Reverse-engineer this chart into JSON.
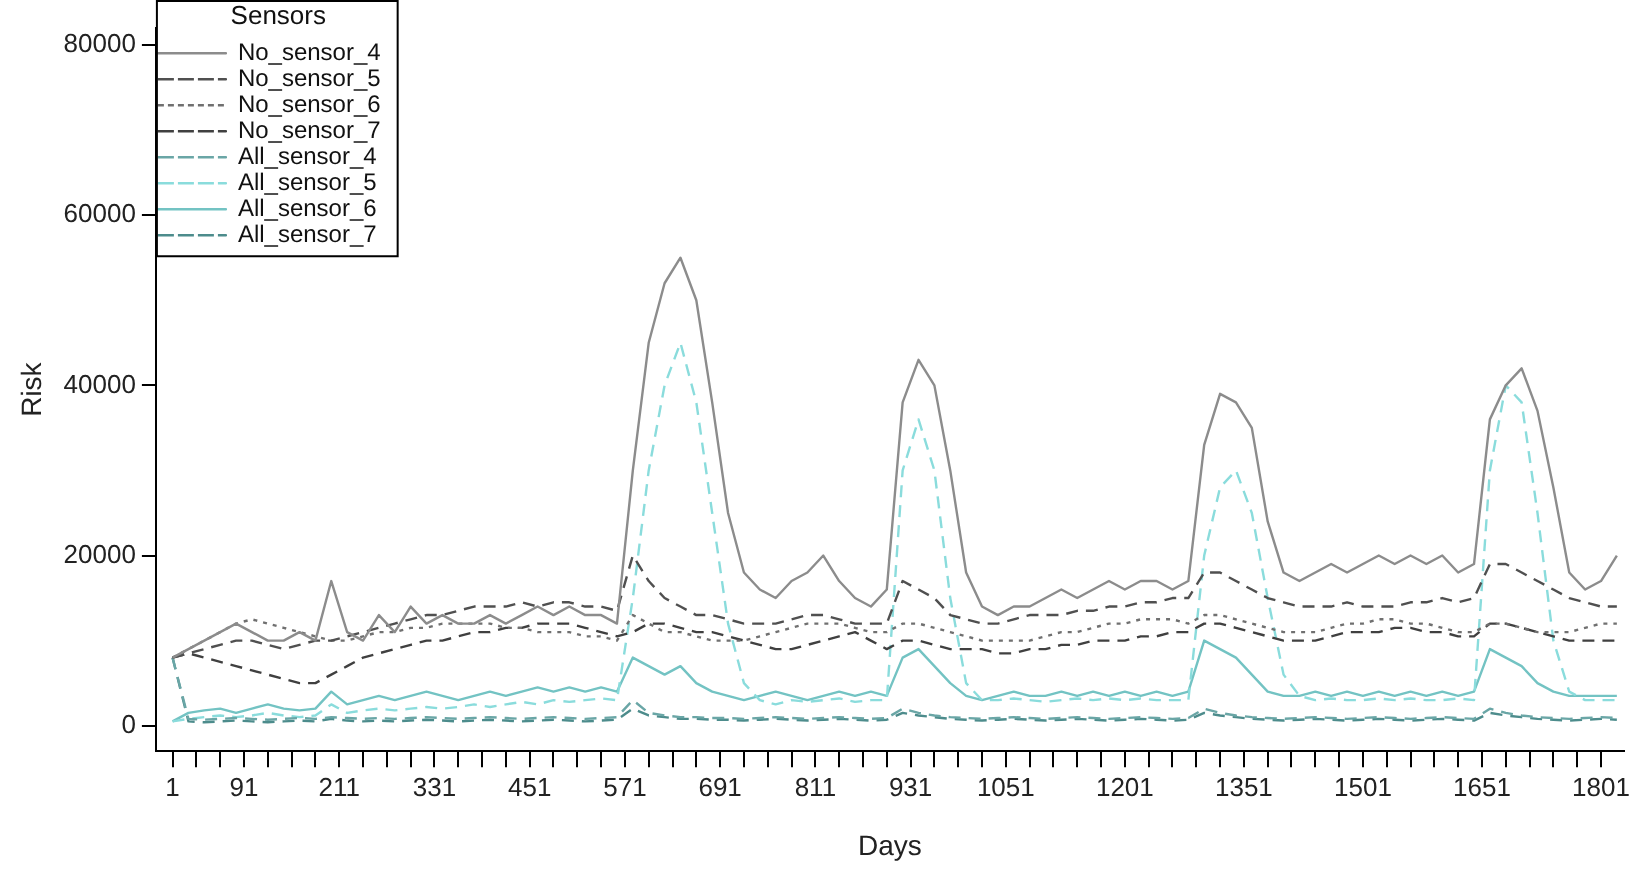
{
  "chart_data": {
    "type": "line",
    "xlabel": "Days",
    "ylabel": "Risk",
    "legend_title": "Sensors",
    "legend": "top left",
    "grid": false,
    "marker": "none",
    "x": [
      1,
      21,
      41,
      61,
      81,
      101,
      121,
      141,
      161,
      181,
      201,
      221,
      241,
      261,
      281,
      301,
      321,
      341,
      361,
      381,
      401,
      421,
      441,
      461,
      481,
      501,
      521,
      541,
      561,
      581,
      601,
      621,
      641,
      661,
      681,
      701,
      721,
      741,
      761,
      781,
      801,
      821,
      841,
      861,
      881,
      901,
      921,
      941,
      961,
      981,
      1001,
      1021,
      1041,
      1061,
      1081,
      1101,
      1121,
      1141,
      1161,
      1181,
      1201,
      1221,
      1241,
      1261,
      1281,
      1301,
      1321,
      1341,
      1361,
      1381,
      1401,
      1421,
      1441,
      1461,
      1481,
      1501,
      1521,
      1541,
      1561,
      1581,
      1601,
      1621,
      1641,
      1661,
      1681,
      1701,
      1721,
      1741,
      1761,
      1781,
      1801,
      1821
    ],
    "xlim": [
      -20,
      1830
    ],
    "ylim": [
      -3000,
      82000
    ],
    "yticks": [
      0,
      20000,
      40000,
      60000,
      80000
    ],
    "xticks": [
      1,
      {
        "value": 31,
        "label": null
      },
      {
        "value": 61,
        "label": null
      },
      91,
      {
        "value": 121,
        "label": null
      },
      {
        "value": 151,
        "label": null
      },
      {
        "value": 181,
        "label": null
      },
      211,
      {
        "value": 241,
        "label": null
      },
      {
        "value": 271,
        "label": null
      },
      {
        "value": 301,
        "label": null
      },
      331,
      {
        "value": 361,
        "label": null
      },
      {
        "value": 391,
        "label": null
      },
      {
        "value": 421,
        "label": null
      },
      451,
      {
        "value": 481,
        "label": null
      },
      {
        "value": 511,
        "label": null
      },
      {
        "value": 541,
        "label": null
      },
      571,
      {
        "value": 601,
        "label": null
      },
      {
        "value": 631,
        "label": null
      },
      {
        "value": 661,
        "label": null
      },
      691,
      {
        "value": 721,
        "label": null
      },
      {
        "value": 751,
        "label": null
      },
      {
        "value": 781,
        "label": null
      },
      811,
      {
        "value": 841,
        "label": null
      },
      {
        "value": 871,
        "label": null
      },
      {
        "value": 901,
        "label": null
      },
      931,
      {
        "value": 961,
        "label": null
      },
      {
        "value": 991,
        "label": null
      },
      {
        "value": 1021,
        "label": null
      },
      1051,
      {
        "value": 1081,
        "label": null
      },
      {
        "value": 1111,
        "label": null
      },
      {
        "value": 1141,
        "label": null
      },
      {
        "value": 1171,
        "label": null
      },
      1201,
      {
        "value": 1231,
        "label": null
      },
      {
        "value": 1261,
        "label": null
      },
      {
        "value": 1291,
        "label": null
      },
      {
        "value": 1321,
        "label": null
      },
      1351,
      {
        "value": 1381,
        "label": null
      },
      {
        "value": 1411,
        "label": null
      },
      {
        "value": 1441,
        "label": null
      },
      {
        "value": 1471,
        "label": null
      },
      1501,
      {
        "value": 1531,
        "label": null
      },
      {
        "value": 1561,
        "label": null
      },
      {
        "value": 1591,
        "label": null
      },
      {
        "value": 1621,
        "label": null
      },
      1651,
      {
        "value": 1681,
        "label": null
      },
      {
        "value": 1711,
        "label": null
      },
      {
        "value": 1741,
        "label": null
      },
      {
        "value": 1771,
        "label": null
      },
      1801
    ],
    "series": [
      {
        "name": "No_sensor_4",
        "color": "#8c8c8c",
        "line_style": "solid",
        "values": [
          8000,
          9000,
          10000,
          11000,
          12000,
          11000,
          10000,
          10000,
          11000,
          10000,
          17000,
          11000,
          10000,
          13000,
          11000,
          14000,
          12000,
          13000,
          12000,
          12000,
          13000,
          12000,
          13000,
          14000,
          13000,
          14000,
          13000,
          13000,
          12000,
          30000,
          45000,
          52000,
          55000,
          50000,
          38000,
          25000,
          18000,
          16000,
          15000,
          17000,
          18000,
          20000,
          17000,
          15000,
          14000,
          16000,
          38000,
          43000,
          40000,
          30000,
          18000,
          14000,
          13000,
          14000,
          14000,
          15000,
          16000,
          15000,
          16000,
          17000,
          16000,
          17000,
          17000,
          16000,
          17000,
          33000,
          39000,
          38000,
          35000,
          24000,
          18000,
          17000,
          18000,
          19000,
          18000,
          19000,
          20000,
          19000,
          20000,
          19000,
          20000,
          18000,
          19000,
          36000,
          40000,
          42000,
          37000,
          28000,
          18000,
          16000,
          17000,
          20000
        ]
      },
      {
        "name": "No_sensor_5",
        "color": "#505050",
        "line_style": "dashed",
        "values": [
          8000,
          8500,
          9000,
          9500,
          10000,
          10000,
          9500,
          9000,
          9500,
          10000,
          10000,
          10500,
          11000,
          11500,
          12000,
          12500,
          13000,
          13000,
          13500,
          14000,
          14000,
          14000,
          14500,
          14000,
          14500,
          14500,
          14000,
          14000,
          13500,
          20000,
          17000,
          15000,
          14000,
          13000,
          13000,
          12500,
          12000,
          12000,
          12000,
          12500,
          13000,
          13000,
          12500,
          12000,
          12000,
          12000,
          17000,
          16000,
          15000,
          13000,
          12500,
          12000,
          12000,
          12500,
          13000,
          13000,
          13000,
          13500,
          13500,
          14000,
          14000,
          14500,
          14500,
          15000,
          15000,
          18000,
          18000,
          17000,
          16000,
          15000,
          14500,
          14000,
          14000,
          14000,
          14500,
          14000,
          14000,
          14000,
          14500,
          14500,
          15000,
          14500,
          15000,
          19000,
          19000,
          18000,
          17000,
          16000,
          15000,
          14500,
          14000,
          14000
        ]
      },
      {
        "name": "No_sensor_6",
        "color": "#707070",
        "line_style": "dotted",
        "values": [
          8000,
          9000,
          10000,
          11000,
          12000,
          12500,
          12000,
          11500,
          11000,
          10500,
          10000,
          10000,
          10500,
          11000,
          11000,
          11500,
          11500,
          12000,
          12000,
          12000,
          12000,
          11500,
          11500,
          11000,
          11000,
          11000,
          10500,
          10500,
          10000,
          13000,
          12000,
          11000,
          11000,
          10500,
          10000,
          10000,
          10000,
          10500,
          11000,
          11500,
          12000,
          12000,
          12000,
          11500,
          11000,
          11000,
          12000,
          12000,
          11500,
          11000,
          10500,
          10000,
          10000,
          10000,
          10000,
          10500,
          11000,
          11000,
          11500,
          12000,
          12000,
          12500,
          12500,
          12500,
          12000,
          13000,
          13000,
          12500,
          12000,
          11500,
          11000,
          11000,
          11000,
          11500,
          12000,
          12000,
          12500,
          12500,
          12000,
          12000,
          11500,
          11000,
          11000,
          12000,
          12000,
          11500,
          11000,
          11000,
          11000,
          11500,
          12000,
          12000
        ]
      },
      {
        "name": "No_sensor_7",
        "color": "#404040",
        "line_style": "dashed",
        "values": [
          8000,
          8500,
          8000,
          7500,
          7000,
          6500,
          6000,
          5500,
          5000,
          5000,
          6000,
          7000,
          8000,
          8500,
          9000,
          9500,
          10000,
          10000,
          10500,
          11000,
          11000,
          11500,
          11500,
          12000,
          12000,
          12000,
          11500,
          11000,
          10500,
          11000,
          12000,
          12000,
          11500,
          11000,
          11000,
          10500,
          10000,
          9500,
          9000,
          9000,
          9500,
          10000,
          10500,
          11000,
          10000,
          9000,
          10000,
          10000,
          9500,
          9000,
          9000,
          9000,
          8500,
          8500,
          9000,
          9000,
          9500,
          9500,
          10000,
          10000,
          10000,
          10500,
          10500,
          11000,
          11000,
          12000,
          12000,
          11500,
          11000,
          10500,
          10000,
          10000,
          10000,
          10500,
          11000,
          11000,
          11000,
          11500,
          11500,
          11000,
          11000,
          10500,
          10500,
          12000,
          12000,
          11500,
          11000,
          10500,
          10000,
          10000,
          10000,
          10000
        ]
      },
      {
        "name": "All_sensor_4",
        "color": "#6aa6a6",
        "line_style": "dashed",
        "values": [
          8000,
          800,
          700,
          800,
          900,
          800,
          700,
          800,
          900,
          800,
          1000,
          900,
          800,
          900,
          800,
          900,
          1000,
          900,
          800,
          900,
          1000,
          900,
          800,
          900,
          1000,
          900,
          800,
          900,
          1000,
          3000,
          1500,
          1200,
          1000,
          1000,
          900,
          900,
          800,
          900,
          1000,
          900,
          800,
          900,
          1000,
          900,
          800,
          900,
          2000,
          1500,
          1200,
          1000,
          900,
          800,
          900,
          1000,
          900,
          800,
          900,
          1000,
          900,
          800,
          900,
          1000,
          900,
          800,
          900,
          2000,
          1500,
          1200,
          1000,
          900,
          800,
          900,
          1000,
          900,
          800,
          900,
          1000,
          900,
          800,
          900,
          1000,
          900,
          800,
          2000,
          1500,
          1200,
          1000,
          900,
          800,
          900,
          1000,
          900
        ]
      },
      {
        "name": "All_sensor_5",
        "color": "#8adcdc",
        "line_style": "dashed",
        "values": [
          500,
          800,
          1000,
          1200,
          1000,
          1200,
          1500,
          1200,
          1000,
          1200,
          2500,
          1500,
          1800,
          2000,
          1800,
          2000,
          2200,
          2000,
          2200,
          2500,
          2200,
          2500,
          2800,
          2500,
          3000,
          2800,
          3000,
          3200,
          3000,
          15000,
          30000,
          40000,
          45000,
          38000,
          25000,
          12000,
          5000,
          3000,
          2500,
          3000,
          2800,
          3000,
          3200,
          2800,
          3000,
          3000,
          30000,
          36000,
          30000,
          15000,
          5000,
          3000,
          3000,
          3200,
          3000,
          2800,
          3000,
          3200,
          3000,
          3200,
          3000,
          3200,
          3000,
          3000,
          3000,
          20000,
          28000,
          30000,
          25000,
          15000,
          6000,
          3500,
          3000,
          3200,
          3000,
          3000,
          3200,
          3000,
          3200,
          3000,
          3000,
          3200,
          3000,
          30000,
          40000,
          38000,
          25000,
          10000,
          4000,
          3000,
          3000,
          3000
        ]
      },
      {
        "name": "All_sensor_6",
        "color": "#73c3c3",
        "line_style": "solid",
        "values": [
          500,
          1500,
          1800,
          2000,
          1500,
          2000,
          2500,
          2000,
          1800,
          2000,
          4000,
          2500,
          3000,
          3500,
          3000,
          3500,
          4000,
          3500,
          3000,
          3500,
          4000,
          3500,
          4000,
          4500,
          4000,
          4500,
          4000,
          4500,
          4000,
          8000,
          7000,
          6000,
          7000,
          5000,
          4000,
          3500,
          3000,
          3500,
          4000,
          3500,
          3000,
          3500,
          4000,
          3500,
          4000,
          3500,
          8000,
          9000,
          7000,
          5000,
          3500,
          3000,
          3500,
          4000,
          3500,
          3500,
          4000,
          3500,
          4000,
          3500,
          4000,
          3500,
          4000,
          3500,
          4000,
          10000,
          9000,
          8000,
          6000,
          4000,
          3500,
          3500,
          4000,
          3500,
          4000,
          3500,
          4000,
          3500,
          4000,
          3500,
          4000,
          3500,
          4000,
          9000,
          8000,
          7000,
          5000,
          4000,
          3500,
          3500,
          3500,
          3500
        ]
      },
      {
        "name": "All_sensor_7",
        "color": "#4d8c8c",
        "line_style": "dashed",
        "values": [
          8000,
          500,
          400,
          500,
          600,
          500,
          400,
          500,
          600,
          500,
          800,
          600,
          500,
          600,
          500,
          600,
          700,
          600,
          500,
          600,
          700,
          600,
          500,
          600,
          700,
          600,
          500,
          600,
          700,
          2000,
          1200,
          1000,
          800,
          800,
          700,
          700,
          600,
          700,
          800,
          700,
          600,
          700,
          800,
          700,
          600,
          700,
          1500,
          1200,
          1000,
          800,
          700,
          600,
          700,
          800,
          700,
          600,
          700,
          800,
          700,
          600,
          700,
          800,
          700,
          600,
          700,
          1500,
          1200,
          1000,
          800,
          700,
          600,
          700,
          800,
          700,
          600,
          700,
          800,
          700,
          600,
          700,
          800,
          700,
          600,
          1500,
          1200,
          1000,
          800,
          700,
          600,
          700,
          800,
          700
        ]
      }
    ]
  }
}
